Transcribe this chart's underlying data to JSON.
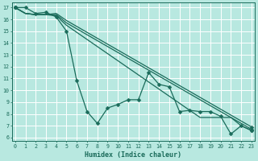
{
  "xlabel": "Humidex (Indice chaleur)",
  "bg_color": "#b8e8e0",
  "grid_color": "#ffffff",
  "line_color": "#1a6b5a",
  "xlim": [
    -0.3,
    23.3
  ],
  "ylim": [
    5.7,
    17.4
  ],
  "xticks": [
    0,
    1,
    2,
    3,
    4,
    5,
    6,
    7,
    8,
    9,
    10,
    11,
    12,
    13,
    14,
    15,
    16,
    17,
    18,
    19,
    20,
    21,
    22,
    23
  ],
  "yticks": [
    6,
    7,
    8,
    9,
    10,
    11,
    12,
    13,
    14,
    15,
    16,
    17
  ],
  "series_zigzag": [
    17,
    17,
    16.5,
    16.6,
    16.2,
    15.0,
    10.8,
    8.2,
    7.2,
    8.5,
    8.8,
    9.2,
    9.2,
    11.5,
    10.5,
    10.3,
    8.2,
    8.3,
    8.2,
    8.2,
    7.8,
    6.3,
    7.0,
    6.6
  ],
  "series_line1": [
    17,
    16.5,
    16.4,
    16.4,
    16.3,
    15.5,
    14.9,
    14.3,
    13.7,
    13.1,
    12.5,
    11.9,
    11.3,
    10.7,
    10.1,
    9.5,
    8.9,
    8.3,
    7.7,
    7.7,
    7.7,
    7.7,
    7.0,
    6.6
  ],
  "series_line2": [
    17,
    16.5,
    16.4,
    16.4,
    16.4,
    15.7,
    15.2,
    14.7,
    14.2,
    13.7,
    13.2,
    12.7,
    12.2,
    11.7,
    11.2,
    10.7,
    10.2,
    9.7,
    9.2,
    8.7,
    8.2,
    7.7,
    7.2,
    6.7
  ],
  "series_line3": [
    17,
    16.5,
    16.4,
    16.4,
    16.5,
    15.9,
    15.4,
    14.9,
    14.4,
    13.9,
    13.4,
    12.9,
    12.4,
    11.9,
    11.4,
    10.9,
    10.4,
    9.9,
    9.4,
    8.9,
    8.4,
    7.9,
    7.4,
    6.9
  ]
}
